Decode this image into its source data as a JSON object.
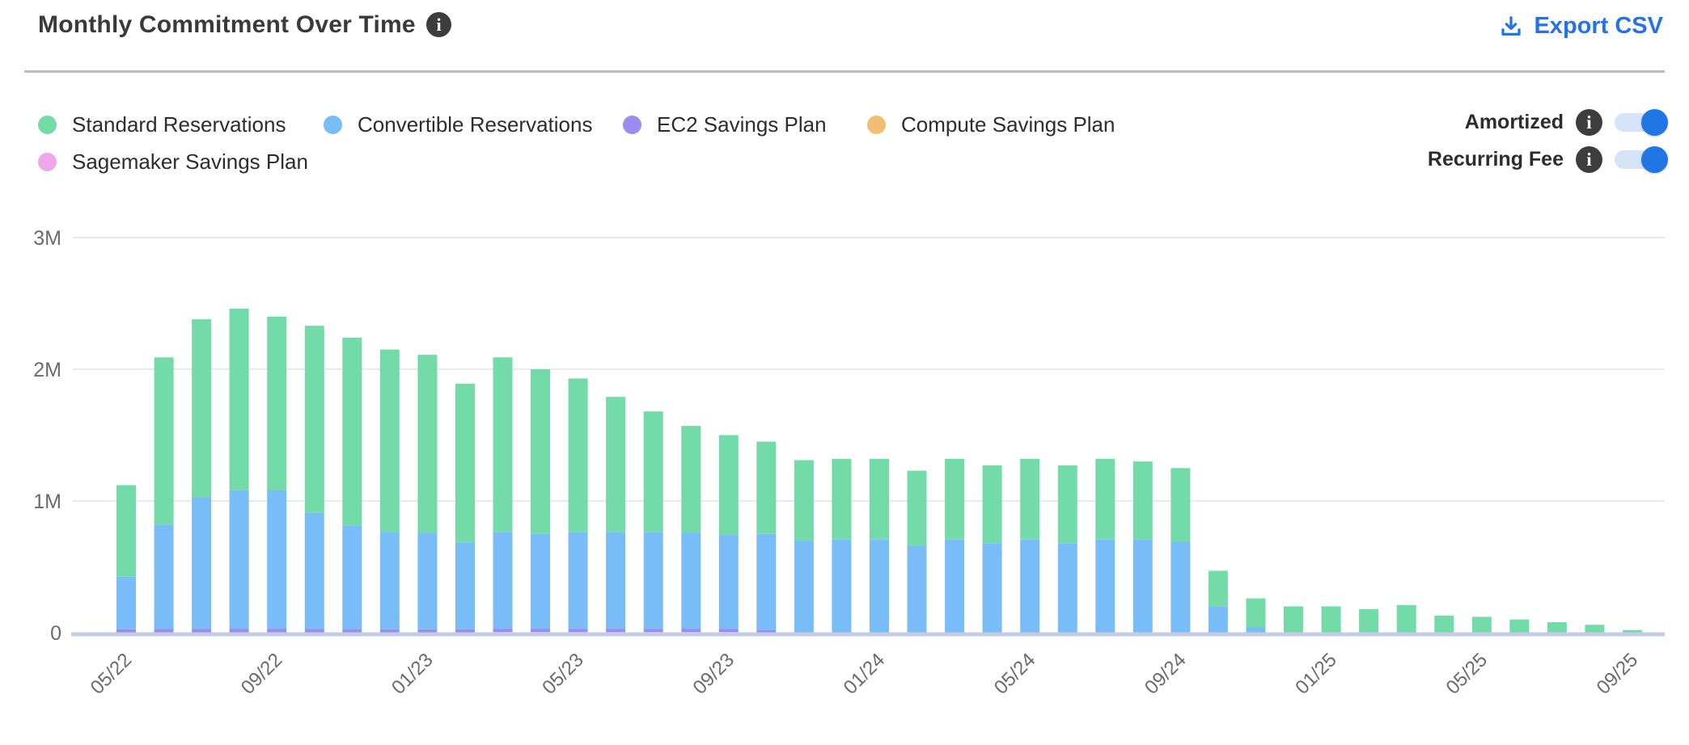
{
  "header": {
    "title": "Monthly Commitment Over Time",
    "info_icon": "i",
    "export_label": "Export CSV"
  },
  "legend": [
    {
      "label": "Standard Reservations",
      "color": "#73dba8"
    },
    {
      "label": "Convertible Reservations",
      "color": "#79bdf8"
    },
    {
      "label": "EC2 Savings Plan",
      "color": "#9b8cf2"
    },
    {
      "label": "Compute Savings Plan",
      "color": "#f2be72"
    },
    {
      "label": "Sagemaker Savings Plan",
      "color": "#efa7ec"
    }
  ],
  "toggles": [
    {
      "label": "Amortized",
      "state": "on"
    },
    {
      "label": "Recurring Fee",
      "state": "on"
    }
  ],
  "colors": {
    "accent_blue": "#2176e5",
    "export_blue": "#2372e8",
    "info_bg": "#3d3d3d",
    "gridline": "#e9e9e9",
    "baseline": "#c3cce4",
    "axis_text": "#6b6b6b"
  },
  "chart_data": {
    "type": "bar",
    "stacked": true,
    "unit": "M (millions USD)",
    "title": "Monthly Commitment Over Time",
    "xlabel": "",
    "ylabel": "",
    "ylim": [
      0,
      3
    ],
    "y_ticks": [
      {
        "value": 0,
        "label": "0"
      },
      {
        "value": 1,
        "label": "1M"
      },
      {
        "value": 2,
        "label": "2M"
      },
      {
        "value": 3,
        "label": "3M"
      }
    ],
    "grid": "horizontal",
    "legend_position": "top-left",
    "categories": [
      "05/22",
      "06/22",
      "07/22",
      "08/22",
      "09/22",
      "10/22",
      "11/22",
      "12/22",
      "01/23",
      "02/23",
      "03/23",
      "04/23",
      "05/23",
      "06/23",
      "07/23",
      "08/23",
      "09/23",
      "10/23",
      "11/23",
      "12/23",
      "01/24",
      "02/24",
      "03/24",
      "04/24",
      "05/24",
      "06/24",
      "07/24",
      "08/24",
      "09/24",
      "10/24",
      "11/24",
      "12/24",
      "01/25",
      "02/25",
      "03/25",
      "04/25",
      "05/25",
      "06/25",
      "07/25",
      "08/25",
      "09/25"
    ],
    "x_tick_labels": [
      "05/22",
      "09/22",
      "01/23",
      "05/23",
      "09/23",
      "01/24",
      "05/24",
      "09/24",
      "01/25",
      "05/25",
      "09/25"
    ],
    "x_tick_every": 4,
    "stack_order_bottom_to_top": [
      "Sagemaker Savings Plan",
      "Compute Savings Plan",
      "EC2 Savings Plan",
      "Convertible Reservations",
      "Standard Reservations"
    ],
    "series": [
      {
        "name": "Standard Reservations",
        "color": "#73dba8",
        "values": [
          0.695,
          1.27,
          1.35,
          1.38,
          1.32,
          1.42,
          1.425,
          1.385,
          1.35,
          1.205,
          1.325,
          1.25,
          1.165,
          1.025,
          0.915,
          0.81,
          0.755,
          0.7,
          0.61,
          0.61,
          0.61,
          0.57,
          0.61,
          0.59,
          0.61,
          0.59,
          0.61,
          0.59,
          0.56,
          0.27,
          0.22,
          0.2,
          0.2,
          0.18,
          0.21,
          0.13,
          0.12,
          0.1,
          0.08,
          0.06,
          0.02
        ]
      },
      {
        "name": "Convertible Reservations",
        "color": "#79bdf8",
        "values": [
          0.4,
          0.79,
          1.0,
          1.05,
          1.05,
          0.88,
          0.79,
          0.74,
          0.735,
          0.66,
          0.735,
          0.72,
          0.735,
          0.735,
          0.735,
          0.73,
          0.715,
          0.73,
          0.7,
          0.71,
          0.71,
          0.66,
          0.71,
          0.68,
          0.71,
          0.68,
          0.71,
          0.71,
          0.69,
          0.2,
          0.04,
          0,
          0,
          0,
          0,
          0,
          0,
          0,
          0,
          0,
          0
        ]
      },
      {
        "name": "EC2 Savings Plan",
        "color": "#9b8cf2",
        "values": [
          0.025,
          0.03,
          0.03,
          0.03,
          0.03,
          0.03,
          0.025,
          0.025,
          0.025,
          0.025,
          0.025,
          0.025,
          0.025,
          0.025,
          0.025,
          0.025,
          0.025,
          0.02,
          0,
          0,
          0,
          0,
          0,
          0,
          0,
          0,
          0,
          0,
          0,
          0,
          0,
          0,
          0,
          0,
          0,
          0,
          0,
          0,
          0,
          0,
          0
        ]
      },
      {
        "name": "Compute Savings Plan",
        "color": "#f2be72",
        "values": [
          0,
          0,
          0,
          0,
          0,
          0,
          0,
          0,
          0,
          0,
          0,
          0,
          0,
          0,
          0,
          0,
          0,
          0,
          0,
          0,
          0,
          0,
          0,
          0,
          0,
          0,
          0,
          0,
          0,
          0,
          0,
          0,
          0,
          0,
          0,
          0,
          0,
          0,
          0,
          0,
          0
        ]
      },
      {
        "name": "Sagemaker Savings Plan",
        "color": "#efa7ec",
        "values": [
          0,
          0,
          0,
          0,
          0,
          0,
          0,
          0,
          0,
          0,
          0.005,
          0.005,
          0.005,
          0.005,
          0.005,
          0.005,
          0.005,
          0,
          0,
          0,
          0,
          0,
          0,
          0,
          0,
          0,
          0,
          0,
          0,
          0,
          0,
          0,
          0,
          0,
          0,
          0,
          0,
          0,
          0,
          0,
          0
        ]
      }
    ]
  }
}
